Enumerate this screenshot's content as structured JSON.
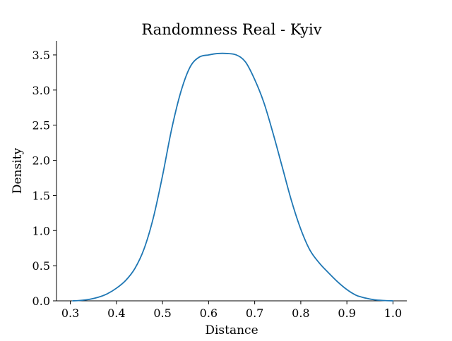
{
  "chart_data": {
    "type": "line",
    "title": "Randomness Real - Kyiv",
    "xlabel": "Distance",
    "ylabel": "Density",
    "xlim": [
      0.27,
      1.03
    ],
    "ylim": [
      0,
      3.7
    ],
    "x_ticks": [
      0.3,
      0.4,
      0.5,
      0.6,
      0.7,
      0.8,
      0.9,
      1.0
    ],
    "x_tick_labels": [
      "0.3",
      "0.4",
      "0.5",
      "0.6",
      "0.7",
      "0.8",
      "0.9",
      "1.0"
    ],
    "y_ticks": [
      0,
      0.5,
      1.0,
      1.5,
      2.0,
      2.5,
      3.0,
      3.5
    ],
    "y_tick_labels": [
      "0.0",
      "0.5",
      "1.0",
      "1.5",
      "2.0",
      "2.5",
      "3.0",
      "3.5"
    ],
    "grid": false,
    "line_color": "#1f77b4",
    "series": [
      {
        "x": [
          0.305,
          0.32,
          0.34,
          0.36,
          0.38,
          0.4,
          0.42,
          0.44,
          0.46,
          0.48,
          0.5,
          0.52,
          0.54,
          0.56,
          0.58,
          0.6,
          0.62,
          0.64,
          0.66,
          0.68,
          0.7,
          0.72,
          0.74,
          0.76,
          0.78,
          0.8,
          0.82,
          0.84,
          0.86,
          0.88,
          0.9,
          0.92,
          0.94,
          0.96,
          0.98,
          1.0
        ],
        "y": [
          0.0,
          0.005,
          0.02,
          0.05,
          0.1,
          0.18,
          0.29,
          0.46,
          0.74,
          1.18,
          1.78,
          2.45,
          2.98,
          3.33,
          3.47,
          3.5,
          3.52,
          3.52,
          3.5,
          3.4,
          3.15,
          2.82,
          2.38,
          1.9,
          1.42,
          1.02,
          0.72,
          0.54,
          0.4,
          0.27,
          0.16,
          0.08,
          0.04,
          0.015,
          0.005,
          0.0
        ]
      }
    ]
  }
}
